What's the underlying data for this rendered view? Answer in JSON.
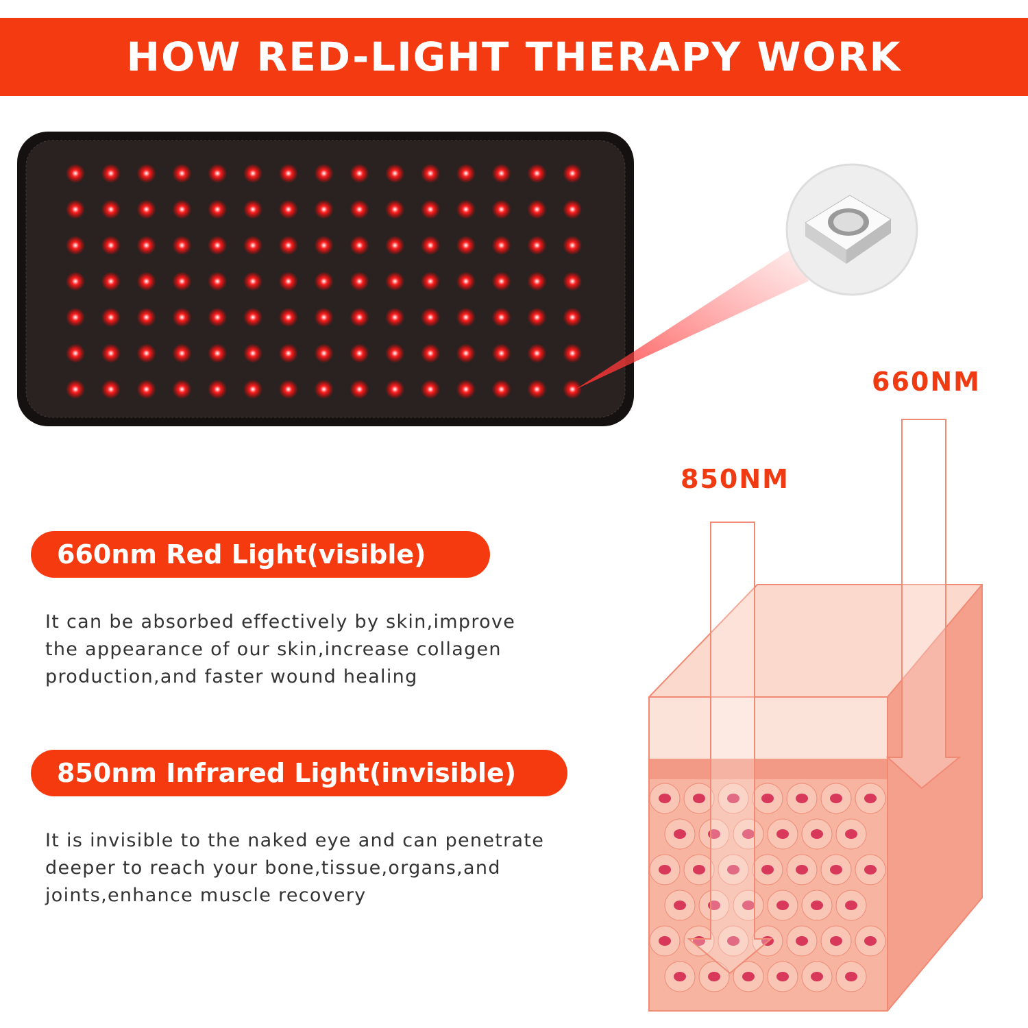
{
  "title": "HOW RED-LIGHT THERAPY WORK",
  "colors": {
    "accent": "#f43a10",
    "led": "#ff1a1a",
    "belt": "#1c1614",
    "skin": "#f6b2a0"
  },
  "device": {
    "led_rows": 7,
    "led_cols": 15,
    "inset_icon": "led-chip-closeup"
  },
  "sections": [
    {
      "heading": "660nm Red Light(visible)",
      "lines": [
        "It can be absorbed effectively by skin,improve",
        "the appearance of our skin,increase collagen",
        "production,and faster wound healing"
      ]
    },
    {
      "heading": "850nm Infrared Light(invisible)",
      "lines": [
        "It is invisible to the naked eye and can penetrate",
        "deeper to reach your bone,tissue,organs,and",
        "joints,enhance muscle recovery"
      ]
    }
  ],
  "diagram": {
    "label_660": "660NM",
    "label_850": "850NM"
  }
}
